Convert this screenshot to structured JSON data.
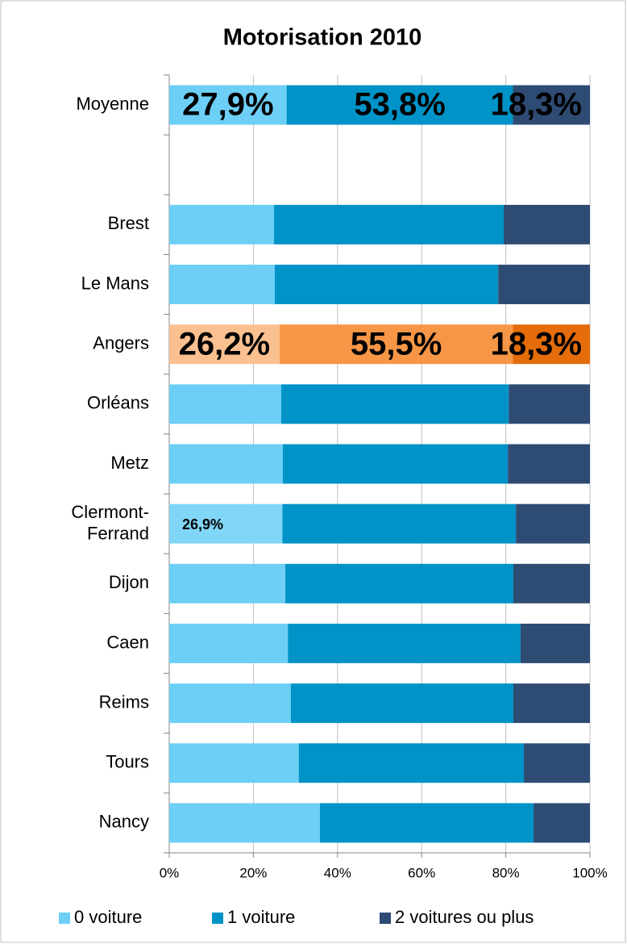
{
  "chart_data": {
    "type": "stacked_bar_horizontal",
    "title": "Motorisation 2010",
    "categories": [
      "Moyenne",
      null,
      "Brest",
      "Le Mans",
      "Angers",
      "Orléans",
      "Metz",
      "Clermont-Ferrand",
      "Dijon",
      "Caen",
      "Reims",
      "Tours",
      "Nancy"
    ],
    "series": [
      {
        "name": "0 voiture",
        "color": "#6dcff6",
        "values": [
          27.9,
          null,
          24.9,
          25.1,
          26.2,
          26.6,
          27.0,
          26.9,
          27.6,
          28.2,
          28.9,
          30.8,
          35.8
        ],
        "value_labels": [
          "27,9%",
          null,
          null,
          null,
          "26,2%",
          null,
          null,
          "26,9%",
          null,
          null,
          null,
          null,
          null
        ],
        "value_label_colors": [
          "#000000",
          null,
          null,
          null,
          "#000000",
          null,
          null,
          "#9fe0fa",
          null,
          null,
          null,
          null,
          null
        ],
        "colors": [
          null,
          null,
          null,
          null,
          "#fac090",
          null,
          null,
          "#80d6f7",
          null,
          null,
          null,
          null,
          null
        ]
      },
      {
        "name": "1 voiture",
        "color": "#0093c7",
        "values": [
          53.8,
          null,
          54.6,
          53.1,
          55.5,
          54.1,
          53.5,
          55.5,
          54.2,
          55.3,
          52.9,
          53.5,
          50.8
        ],
        "value_labels": [
          "53,8%",
          null,
          null,
          null,
          "55,5%",
          null,
          null,
          null,
          null,
          null,
          null,
          null,
          null
        ],
        "value_label_colors": [
          "#ffffff",
          null,
          null,
          null,
          "#ffffff",
          null,
          null,
          null,
          null,
          null,
          null,
          null,
          null
        ],
        "colors": [
          null,
          null,
          null,
          null,
          "#f79646",
          null,
          null,
          null,
          null,
          null,
          null,
          null,
          null
        ]
      },
      {
        "name": "2 voitures ou plus",
        "color": "#2e4b73",
        "values": [
          18.3,
          null,
          20.5,
          21.8,
          18.3,
          19.3,
          19.5,
          17.6,
          18.2,
          16.5,
          18.2,
          15.7,
          13.4
        ],
        "value_labels": [
          "18,3%",
          null,
          null,
          null,
          "18,3%",
          null,
          null,
          null,
          null,
          null,
          null,
          null,
          null
        ],
        "value_label_colors": [
          "#ffffff",
          null,
          null,
          null,
          "#ffffff",
          null,
          null,
          null,
          null,
          null,
          null,
          null,
          null
        ],
        "colors": [
          null,
          null,
          null,
          null,
          "#e46c0a",
          null,
          null,
          null,
          null,
          null,
          null,
          null,
          null
        ]
      }
    ],
    "xlim": [
      0,
      100
    ],
    "xticks": [
      {
        "value": 0,
        "label": "0%"
      },
      {
        "value": 20,
        "label": "20%"
      },
      {
        "value": 40,
        "label": "40%"
      },
      {
        "value": 60,
        "label": "60%"
      },
      {
        "value": 80,
        "label": "80%"
      },
      {
        "value": 100,
        "label": "100%"
      }
    ],
    "grid": true,
    "legend": "bottom"
  }
}
